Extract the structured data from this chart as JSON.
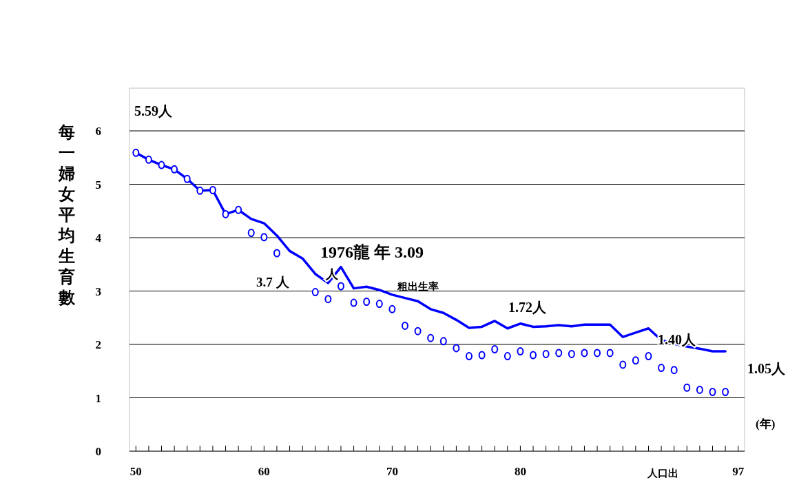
{
  "chart_data": {
    "type": "line",
    "ylabel": "每一婦女平均生育數",
    "x": [
      50,
      51,
      52,
      53,
      54,
      55,
      56,
      57,
      58,
      59,
      60,
      61,
      62,
      63,
      64,
      65,
      66,
      67,
      68,
      69,
      70,
      71,
      72,
      73,
      74,
      75,
      76,
      77,
      78,
      79,
      80,
      81,
      82,
      83,
      84,
      85,
      86,
      87,
      88,
      89,
      90,
      91,
      92,
      93,
      94,
      95,
      96
    ],
    "series": [
      {
        "color": "#0000ff",
        "marker": "none",
        "line_style": "solid",
        "values": [
          5.59,
          5.46,
          5.36,
          5.28,
          5.1,
          4.88,
          4.89,
          4.44,
          4.52,
          4.35,
          4.27,
          4.04,
          3.75,
          3.61,
          3.32,
          3.15,
          3.45,
          3.05,
          3.08,
          3.02,
          2.93,
          2.87,
          2.81,
          2.66,
          2.59,
          2.46,
          2.31,
          2.33,
          2.44,
          2.3,
          2.39,
          2.33,
          2.34,
          2.36,
          2.34,
          2.37,
          2.37,
          2.37,
          2.14,
          2.22,
          2.3,
          2.08,
          2.01,
          1.96,
          1.92,
          1.87,
          1.87
        ]
      },
      {
        "type": "scatter",
        "color": "#0000ff",
        "marker": "circle",
        "values": [
          5.59,
          5.46,
          5.36,
          5.28,
          5.1,
          4.88,
          4.89,
          4.44,
          4.52,
          4.09,
          4.01,
          3.71,
          null,
          null,
          2.98,
          2.85,
          3.09,
          2.78,
          2.8,
          2.76,
          2.66,
          2.35,
          2.25,
          2.12,
          2.06,
          1.93,
          1.78,
          1.8,
          1.91,
          1.78,
          1.87,
          1.8,
          1.82,
          1.84,
          1.82,
          1.84,
          1.84,
          1.84,
          1.62,
          1.7,
          1.78,
          1.56,
          1.52,
          1.19,
          1.15,
          1.11,
          1.11
        ]
      }
    ],
    "xlim": [
      49.5,
      97.5
    ],
    "xticks": [
      50,
      {
        "value": 51,
        "label": null
      },
      {
        "value": 52,
        "label": null
      },
      {
        "value": 53,
        "label": null
      },
      {
        "value": 54,
        "label": null
      },
      {
        "value": 55,
        "label": null
      },
      {
        "value": 56,
        "label": null
      },
      {
        "value": 57,
        "label": null
      },
      {
        "value": 58,
        "label": null
      },
      {
        "value": 59,
        "label": null
      },
      60,
      {
        "value": 61,
        "label": null
      },
      {
        "value": 62,
        "label": null
      },
      {
        "value": 63,
        "label": null
      },
      {
        "value": 64,
        "label": null
      },
      {
        "value": 65,
        "label": null
      },
      {
        "value": 66,
        "label": null
      },
      {
        "value": 67,
        "label": null
      },
      {
        "value": 68,
        "label": null
      },
      {
        "value": 69,
        "label": null
      },
      70,
      {
        "value": 71,
        "label": null
      },
      {
        "value": 72,
        "label": null
      },
      {
        "value": 73,
        "label": null
      },
      {
        "value": 74,
        "label": null
      },
      {
        "value": 75,
        "label": null
      },
      {
        "value": 76,
        "label": null
      },
      {
        "value": 77,
        "label": null
      },
      {
        "value": 78,
        "label": null
      },
      {
        "value": 79,
        "label": null
      },
      80,
      {
        "value": 81,
        "label": null
      },
      {
        "value": 82,
        "label": null
      },
      {
        "value": 83,
        "label": null
      },
      {
        "value": 84,
        "label": null
      },
      {
        "value": 85,
        "label": null
      },
      {
        "value": 86,
        "label": null
      },
      {
        "value": 87,
        "label": null
      },
      {
        "value": 88,
        "label": null
      },
      {
        "value": 89,
        "label": null
      },
      {
        "value": 90,
        "label": null
      },
      {
        "value": 91,
        "label": null
      },
      {
        "value": 92,
        "label": null
      },
      {
        "value": 93,
        "label": null
      },
      {
        "value": 94,
        "label": null
      },
      {
        "value": 95,
        "label": null
      },
      {
        "value": 96,
        "label": null
      },
      {
        "value": 97,
        "label": "97"
      }
    ],
    "ylim": [
      0,
      6.8
    ],
    "yticks": [
      0,
      1,
      2,
      3,
      4,
      5,
      6
    ],
    "grid": "y",
    "annotations": [
      "5.59人",
      "1976龍 年  3.09",
      "人",
      "3.7 人",
      "粗出生率",
      "1.72人",
      "1.40人",
      "1.05人",
      "(年)",
      "人口出"
    ]
  }
}
